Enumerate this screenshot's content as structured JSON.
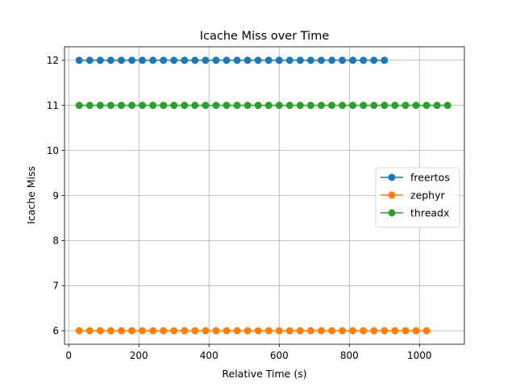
{
  "chart_data": {
    "type": "line",
    "title": "Icache Miss over Time",
    "xlabel": "Relative Time (s)",
    "ylabel": "Icache Miss",
    "xlim": [
      -12,
      1128
    ],
    "ylim": [
      5.7,
      12.3
    ],
    "xticks": [
      0,
      200,
      400,
      600,
      800,
      1000
    ],
    "yticks": [
      6,
      7,
      8,
      9,
      10,
      11,
      12
    ],
    "grid": true,
    "legend_position": "center-right",
    "series": [
      {
        "name": "freertos",
        "color": "#1f77b4",
        "y": 12,
        "x_start": 30,
        "x_step": 30,
        "x_end": 900
      },
      {
        "name": "zephyr",
        "color": "#ff7f0e",
        "y": 6,
        "x_start": 30,
        "x_step": 30,
        "x_end": 1020
      },
      {
        "name": "threadx",
        "color": "#2ca02c",
        "y": 11,
        "x_start": 30,
        "x_step": 30,
        "x_end": 1080
      }
    ]
  }
}
